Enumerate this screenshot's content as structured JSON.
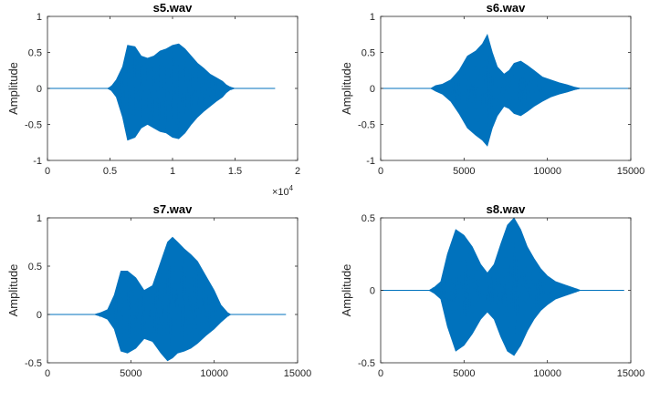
{
  "figure": {
    "background": "#ffffff",
    "line_color": "#0072bd",
    "axis_color": "#262626"
  },
  "chart_data": [
    {
      "type": "line",
      "title": "s5.wav",
      "xlabel": "",
      "ylabel": "Amplitude",
      "xlim": [
        0,
        20000
      ],
      "ylim": [
        -1,
        1
      ],
      "xticks": [
        0,
        5000,
        10000,
        15000,
        20000
      ],
      "xtick_labels": [
        "0",
        "0.5",
        "1",
        "1.5",
        "2"
      ],
      "x_exponent_label": "×10",
      "x_exponent_power": "4",
      "yticks": [
        -1,
        -0.5,
        0,
        0.5,
        1
      ],
      "ytick_labels": [
        "-1",
        "-0.5",
        "0",
        "0.5",
        "1"
      ],
      "series": [
        {
          "color": "#0072bd",
          "x_end": 18200,
          "envelope_x": [
            0,
            4800,
            5100,
            5500,
            6000,
            6400,
            7000,
            7500,
            8000,
            8500,
            9000,
            9500,
            10000,
            10500,
            11000,
            11500,
            12000,
            12500,
            13000,
            13500,
            14000,
            14300,
            14600,
            15000,
            18200
          ],
          "envelope_max": [
            0,
            0,
            0.03,
            0.12,
            0.3,
            0.6,
            0.58,
            0.45,
            0.42,
            0.45,
            0.52,
            0.55,
            0.6,
            0.62,
            0.55,
            0.45,
            0.35,
            0.28,
            0.2,
            0.15,
            0.1,
            0.05,
            0.02,
            0,
            0
          ],
          "envelope_min": [
            0,
            0,
            -0.03,
            -0.12,
            -0.4,
            -0.72,
            -0.68,
            -0.55,
            -0.5,
            -0.55,
            -0.6,
            -0.62,
            -0.68,
            -0.7,
            -0.62,
            -0.5,
            -0.4,
            -0.32,
            -0.25,
            -0.18,
            -0.12,
            -0.06,
            -0.02,
            0,
            0
          ]
        }
      ]
    },
    {
      "type": "line",
      "title": "s6.wav",
      "xlabel": "",
      "ylabel": "Amplitude",
      "xlim": [
        0,
        15000
      ],
      "ylim": [
        -1,
        1
      ],
      "xticks": [
        0,
        5000,
        10000,
        15000
      ],
      "xtick_labels": [
        "0",
        "5000",
        "10000",
        "15000"
      ],
      "yticks": [
        -1,
        -0.5,
        0,
        0.5,
        1
      ],
      "ytick_labels": [
        "-1",
        "-0.5",
        "0",
        "0.5",
        "1"
      ],
      "series": [
        {
          "color": "#0072bd",
          "x_end": 15000,
          "envelope_x": [
            0,
            3000,
            3300,
            3700,
            4200,
            4700,
            5200,
            5700,
            6100,
            6400,
            6700,
            7000,
            7400,
            7700,
            8000,
            8400,
            8800,
            9200,
            9700,
            10200,
            10700,
            11200,
            11600,
            12000,
            15000
          ],
          "envelope_max": [
            0,
            0,
            0.04,
            0.06,
            0.12,
            0.25,
            0.45,
            0.52,
            0.62,
            0.75,
            0.5,
            0.3,
            0.2,
            0.25,
            0.35,
            0.38,
            0.32,
            0.25,
            0.16,
            0.12,
            0.08,
            0.05,
            0.02,
            0,
            0
          ],
          "envelope_min": [
            0,
            0,
            -0.04,
            -0.08,
            -0.18,
            -0.35,
            -0.55,
            -0.65,
            -0.72,
            -0.8,
            -0.55,
            -0.38,
            -0.25,
            -0.28,
            -0.35,
            -0.38,
            -0.32,
            -0.25,
            -0.18,
            -0.12,
            -0.08,
            -0.05,
            -0.02,
            0,
            0
          ]
        }
      ]
    },
    {
      "type": "line",
      "title": "s7.wav",
      "xlabel": "",
      "ylabel": "Amplitude",
      "xlim": [
        0,
        15000
      ],
      "ylim": [
        -0.5,
        1
      ],
      "xticks": [
        0,
        5000,
        10000,
        15000
      ],
      "xtick_labels": [
        "0",
        "5000",
        "10000",
        "15000"
      ],
      "yticks": [
        -0.5,
        0,
        0.5,
        1
      ],
      "ytick_labels": [
        "-0.5",
        "0",
        "0.5",
        "1"
      ],
      "series": [
        {
          "color": "#0072bd",
          "x_end": 14300,
          "envelope_x": [
            0,
            2800,
            3200,
            3600,
            4000,
            4400,
            4800,
            5300,
            5800,
            6300,
            6800,
            7200,
            7500,
            7800,
            8200,
            8600,
            9000,
            9500,
            10000,
            10400,
            10800,
            11000,
            14300
          ],
          "envelope_max": [
            0,
            0,
            0.02,
            0.05,
            0.2,
            0.45,
            0.45,
            0.38,
            0.25,
            0.3,
            0.55,
            0.75,
            0.8,
            0.75,
            0.68,
            0.62,
            0.55,
            0.4,
            0.25,
            0.1,
            0.02,
            0,
            0
          ],
          "envelope_min": [
            0,
            0,
            -0.02,
            -0.05,
            -0.15,
            -0.38,
            -0.4,
            -0.35,
            -0.25,
            -0.28,
            -0.4,
            -0.48,
            -0.45,
            -0.4,
            -0.38,
            -0.35,
            -0.3,
            -0.22,
            -0.15,
            -0.08,
            -0.02,
            0,
            0
          ]
        }
      ]
    },
    {
      "type": "line",
      "title": "s8.wav",
      "xlabel": "",
      "ylabel": "Amplitude",
      "xlim": [
        0,
        15000
      ],
      "ylim": [
        -0.5,
        0.5
      ],
      "xticks": [
        0,
        5000,
        10000,
        15000
      ],
      "xtick_labels": [
        "0",
        "5000",
        "10000",
        "15000"
      ],
      "yticks": [
        -0.5,
        0,
        0.5
      ],
      "ytick_labels": [
        "-0.5",
        "0",
        "0.5"
      ],
      "series": [
        {
          "color": "#0072bd",
          "x_end": 14600,
          "envelope_x": [
            0,
            2900,
            3200,
            3600,
            4000,
            4500,
            5000,
            5500,
            6000,
            6400,
            6800,
            7200,
            7600,
            8000,
            8400,
            8800,
            9200,
            9600,
            10000,
            10500,
            11000,
            11500,
            12000,
            14600
          ],
          "envelope_max": [
            0,
            0,
            0.02,
            0.06,
            0.25,
            0.42,
            0.38,
            0.3,
            0.18,
            0.12,
            0.18,
            0.32,
            0.45,
            0.5,
            0.42,
            0.3,
            0.22,
            0.15,
            0.1,
            0.06,
            0.04,
            0.02,
            0,
            0
          ],
          "envelope_min": [
            0,
            0,
            -0.02,
            -0.06,
            -0.25,
            -0.42,
            -0.38,
            -0.3,
            -0.2,
            -0.15,
            -0.2,
            -0.32,
            -0.42,
            -0.45,
            -0.38,
            -0.28,
            -0.2,
            -0.14,
            -0.1,
            -0.06,
            -0.04,
            -0.02,
            0,
            0
          ]
        }
      ]
    }
  ]
}
